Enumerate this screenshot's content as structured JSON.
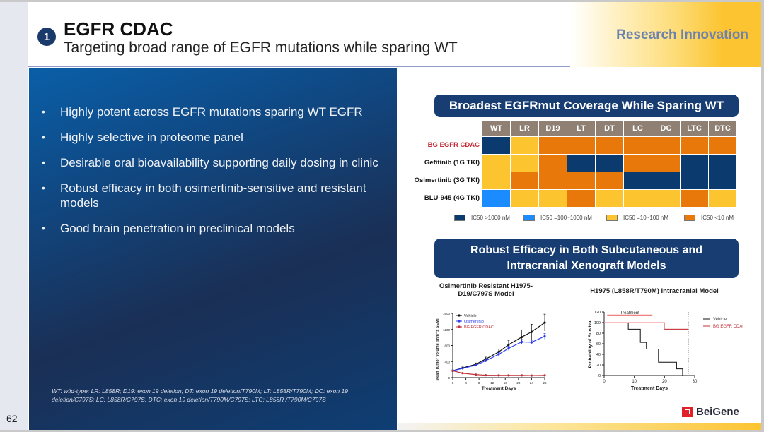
{
  "header": {
    "section_number": "1",
    "title": "EGFR CDAC",
    "subtitle": "Targeting broad range of EGFR mutations while sparing WT",
    "tag": "Research Innovation"
  },
  "bullets": [
    "Highly potent across EGFR mutations sparing WT EGFR",
    "Highly selective in proteome panel",
    "Desirable oral bioavailability supporting daily dosing in clinic",
    "Robust efficacy in both osimertinib-sensitive and resistant models",
    "Good brain penetration in preclinical models"
  ],
  "footnote": "WT: wild-type; LR: L858R; D19: exon 19 deletion; DT: exon 19 deletion/T790M; LT: L858R/T790M; DC: exon 19 deletion/C797S; LC: L858R/C797S; DTC: exon 19 deletion/T790M/C797S; LTC: L858R /T790M/C797S",
  "page_number": "62",
  "logo_text": "BeiGene",
  "colors": {
    "navy": "#0b3a6e",
    "blue": "#1a8cff",
    "yellow": "#fcc42e",
    "orange": "#e8780a",
    "red": "#c0303a"
  },
  "coverage": {
    "title": "Broadest EGFRmut Coverage While Sparing WT",
    "columns": [
      "WT",
      "LR",
      "D19",
      "LT",
      "DT",
      "LC",
      "DC",
      "LTC",
      "DTC"
    ],
    "rows": [
      {
        "label": "BG EGFR CDAC",
        "highlight": true,
        "cells": [
          "gt1000",
          "10to100",
          "lt10",
          "lt10",
          "lt10",
          "lt10",
          "lt10",
          "lt10",
          "lt10"
        ]
      },
      {
        "label": "Gefitinib (1G TKI)",
        "highlight": false,
        "cells": [
          "10to100",
          "10to100",
          "lt10",
          "gt1000",
          "gt1000",
          "lt10",
          "lt10",
          "gt1000",
          "gt1000"
        ]
      },
      {
        "label": "Osimertinib (3G TKI)",
        "highlight": false,
        "cells": [
          "10to100",
          "lt10",
          "lt10",
          "lt10",
          "lt10",
          "gt1000",
          "gt1000",
          "gt1000",
          "gt1000"
        ]
      },
      {
        "label": "BLU-945 (4G TKI)",
        "highlight": false,
        "cells": [
          "100to1000",
          "10to100",
          "10to100",
          "lt10",
          "10to100",
          "10to100",
          "10to100",
          "lt10",
          "10to100"
        ]
      }
    ],
    "legend": [
      {
        "key": "gt1000",
        "label": "IC50 >1000 nM"
      },
      {
        "key": "100to1000",
        "label": "IC50 =100~1000 nM"
      },
      {
        "key": "10to100",
        "label": "IC50 =10~100 nM"
      },
      {
        "key": "lt10",
        "label": "IC50 <10 nM"
      }
    ]
  },
  "efficacy_title_line1": "Robust Efficacy in Both Subcutaneous and",
  "efficacy_title_line2": "Intracranial Xenograft Models",
  "chart_data": [
    {
      "type": "line",
      "title_line1": "Osimertinib Resistant H1975-",
      "title_line2": "D19/C797S Model",
      "xlabel": "Treatment Days",
      "ylabel": "Mean Tumor Volume (mm³ ± SEM)",
      "xlim": [
        0,
        28
      ],
      "ylim": [
        0,
        1600
      ],
      "xticks": [
        0,
        4,
        8,
        12,
        16,
        20,
        24,
        28
      ],
      "yticks": [
        0,
        400,
        800,
        1200,
        1600
      ],
      "legend_position": "top-left",
      "series": [
        {
          "name": "Vehicle",
          "color": "#111111",
          "x": [
            0,
            3,
            7,
            10,
            14,
            17,
            21,
            24,
            28
          ],
          "y": [
            170,
            240,
            330,
            460,
            640,
            820,
            1010,
            1140,
            1370
          ],
          "sem": [
            20,
            25,
            35,
            50,
            70,
            110,
            180,
            190,
            210
          ]
        },
        {
          "name": "Osimertinib",
          "color": "#2a3cf0",
          "x": [
            0,
            3,
            7,
            10,
            14,
            17,
            21,
            24,
            28
          ],
          "y": [
            170,
            230,
            310,
            420,
            580,
            730,
            890,
            880,
            1030
          ],
          "sem": [
            20,
            20,
            30,
            30,
            40,
            50,
            60,
            50,
            70
          ]
        },
        {
          "name": "BG EGFR CDAC",
          "color": "#c0303a",
          "x": [
            0,
            3,
            7,
            10,
            14,
            17,
            21,
            24,
            28
          ],
          "y": [
            170,
            110,
            75,
            60,
            55,
            55,
            55,
            50,
            55
          ],
          "sem": [
            15,
            10,
            8,
            6,
            6,
            6,
            6,
            6,
            6
          ]
        }
      ],
      "reference_line_y": 170
    },
    {
      "type": "line",
      "title": "H1975 (L858R/T790M) Intracranial Model",
      "xlabel": "Treatment Days",
      "ylabel": "Probability of Survival",
      "xlim": [
        0,
        30
      ],
      "ylim": [
        0,
        120
      ],
      "xticks": [
        0,
        10,
        20,
        30
      ],
      "yticks": [
        0,
        20,
        40,
        60,
        80,
        100,
        120
      ],
      "treatment_label": "Treatment",
      "treatment_range": [
        1,
        16
      ],
      "end_line_x": 28,
      "legend_position": "right",
      "series": [
        {
          "name": "Vehicle",
          "color": "#111111",
          "step_x": [
            0,
            8,
            8,
            12,
            12,
            14,
            14,
            18,
            18,
            24,
            24,
            26,
            26
          ],
          "step_y": [
            100,
            100,
            87.5,
            87.5,
            62.5,
            62.5,
            50,
            50,
            25,
            25,
            12.5,
            12.5,
            0
          ]
        },
        {
          "name": "BG EGFR CDAC",
          "color": "#c0303a",
          "step_x": [
            0,
            20,
            20,
            28
          ],
          "step_y": [
            100,
            100,
            87.5,
            87.5
          ]
        }
      ]
    }
  ]
}
